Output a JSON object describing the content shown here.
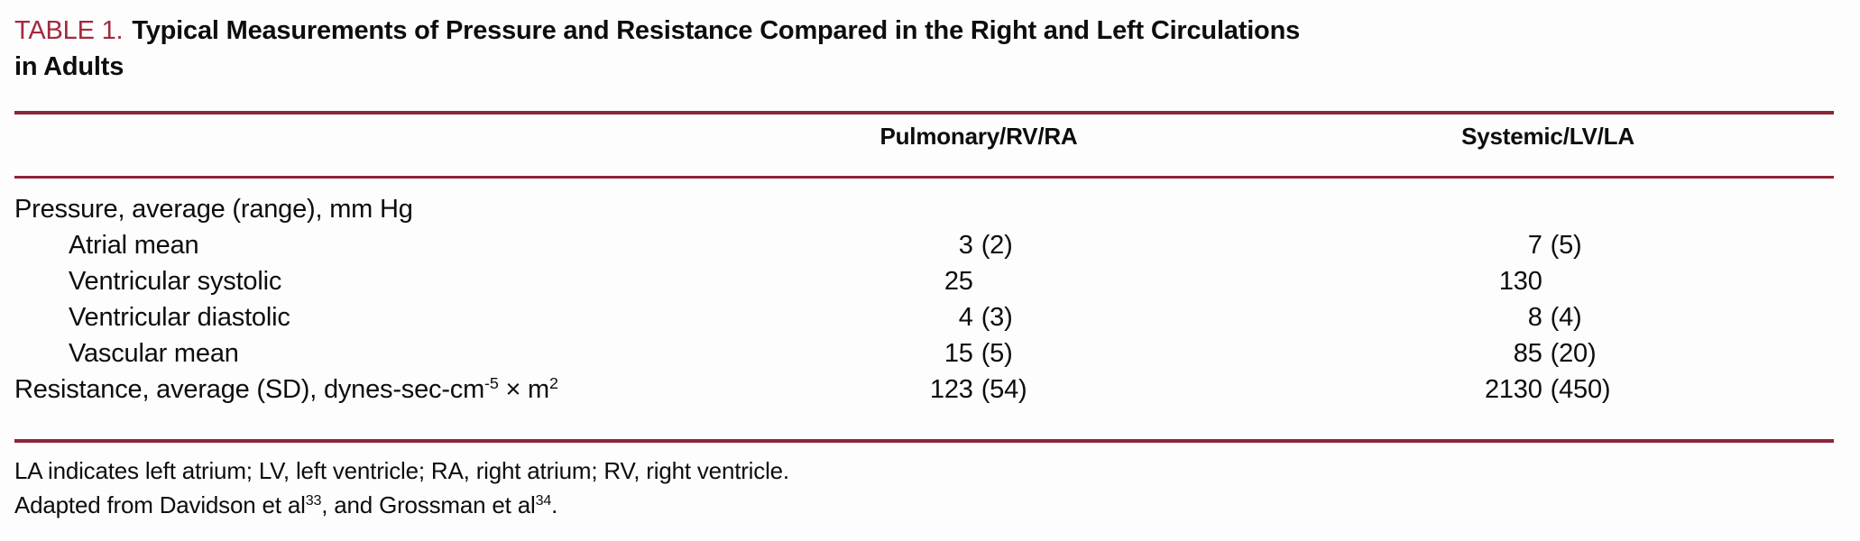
{
  "colors": {
    "accent": "#a32a3e",
    "rule": "#8f2539",
    "text": "#0d0d0d",
    "background": "#fdfdfd"
  },
  "caption": {
    "label": "TABLE 1.",
    "title_line1": "Typical Measurements of Pressure and Resistance Compared in the Right and Left Circulations",
    "title_line2": "in Adults"
  },
  "table": {
    "columns": [
      "",
      "Pulmonary/RV/RA",
      "Systemic/LV/LA"
    ],
    "rows": [
      {
        "label": "Pressure, average (range), mm Hg",
        "section": true
      },
      {
        "label": "Atrial mean",
        "indent": true,
        "pulmonary": {
          "value": "3",
          "range": "(2)"
        },
        "systemic": {
          "value": "7",
          "range": "(5)"
        }
      },
      {
        "label": "Ventricular systolic",
        "indent": true,
        "pulmonary": {
          "value": "25",
          "range": ""
        },
        "systemic": {
          "value": "130",
          "range": ""
        }
      },
      {
        "label": "Ventricular diastolic",
        "indent": true,
        "pulmonary": {
          "value": "4",
          "range": "(3)"
        },
        "systemic": {
          "value": "8",
          "range": "(4)"
        }
      },
      {
        "label": "Vascular mean",
        "indent": true,
        "pulmonary": {
          "value": "15",
          "range": "(5)"
        },
        "systemic": {
          "value": "85",
          "range": "(20)"
        }
      },
      {
        "label_parts": [
          "Resistance, average (SD), dynes-sec-cm",
          "-5",
          " × m",
          "2"
        ],
        "pulmonary": {
          "value": "123",
          "range": "(54)"
        },
        "systemic": {
          "value": "2130",
          "range": "(450)"
        }
      }
    ]
  },
  "footnotes": {
    "abbreviations": "LA indicates left atrium; LV, left ventricle; RA, right atrium; RV, right ventricle.",
    "source_parts": [
      "Adapted from Davidson et al",
      "33",
      ", and Grossman et al",
      "34",
      "."
    ]
  }
}
